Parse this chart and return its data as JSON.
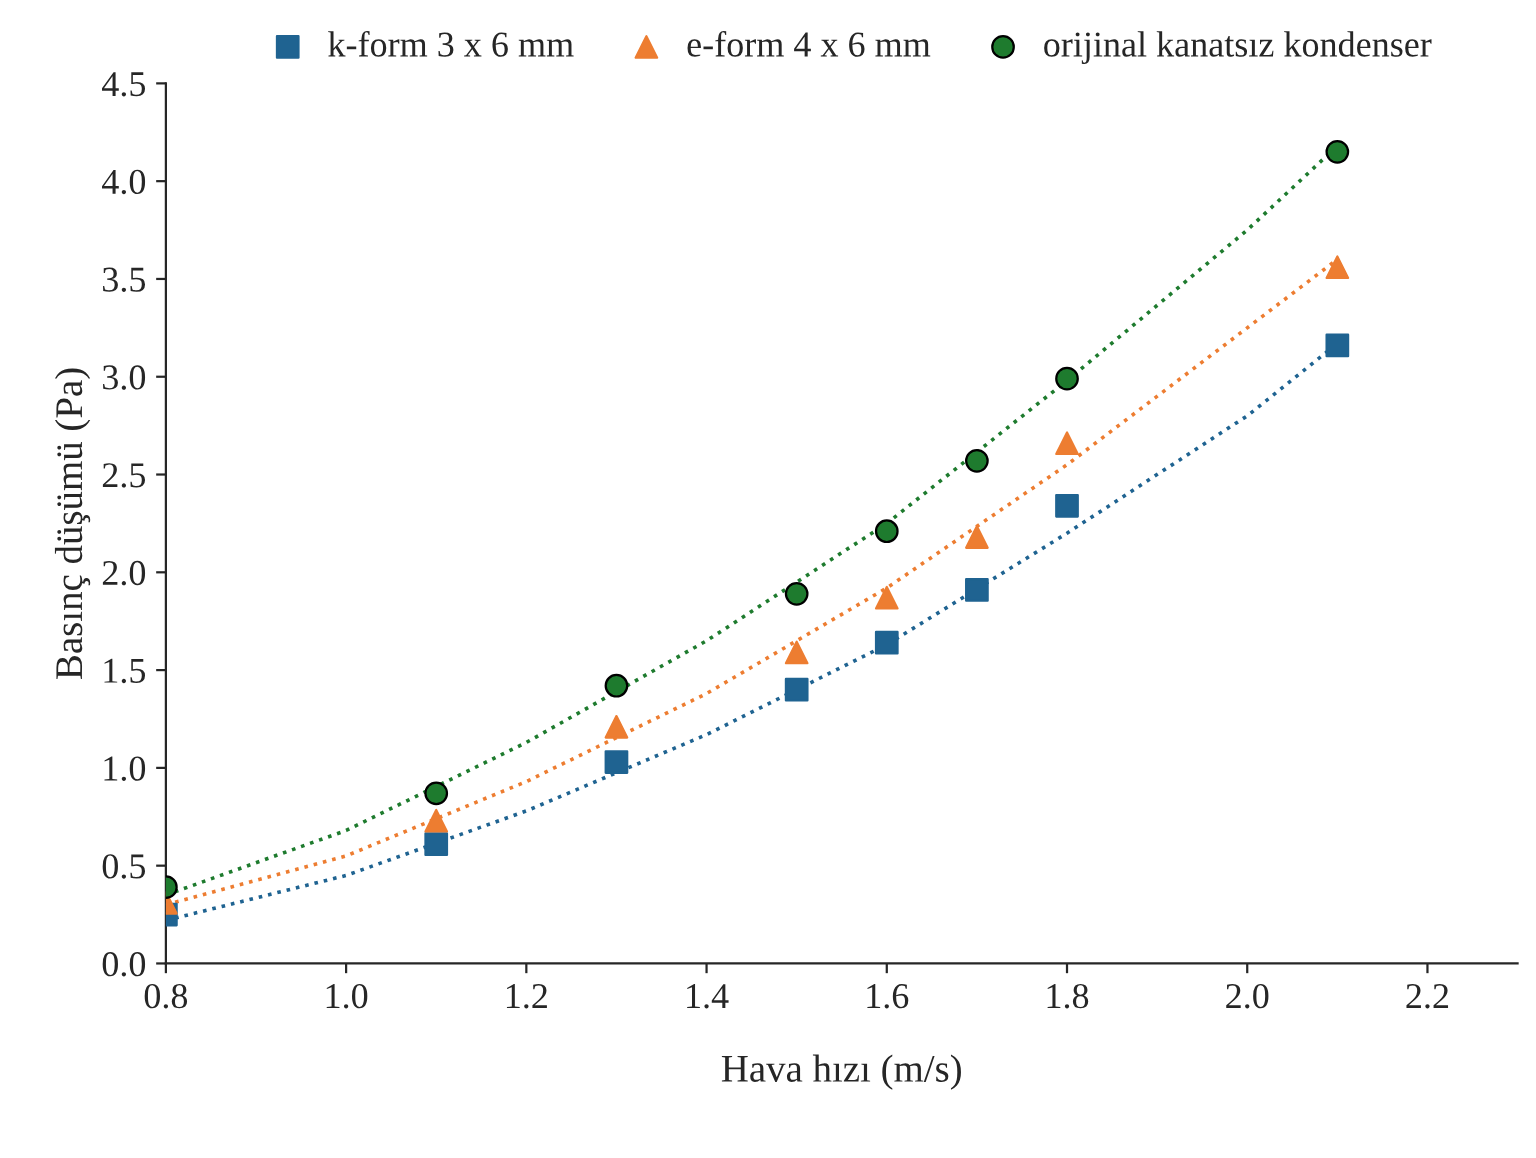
{
  "chart_data": {
    "type": "scatter",
    "xlabel": "Hava hızı (m/s)",
    "ylabel": "Basınç düşümü (Pa)",
    "x": [
      0.8,
      1.1,
      1.3,
      1.5,
      1.6,
      1.7,
      1.8,
      2.1
    ],
    "series": [
      {
        "name": "k-form 3 x 6 mm",
        "color": "#1f6391",
        "marker": "square",
        "values": [
          0.25,
          0.61,
          1.03,
          1.4,
          1.64,
          1.91,
          2.34,
          3.16
        ]
      },
      {
        "name": "e-form 4 x 6 mm",
        "color": "#ed7d31",
        "marker": "triangle",
        "values": [
          0.31,
          0.73,
          1.21,
          1.59,
          1.87,
          2.18,
          2.66,
          3.56
        ]
      },
      {
        "name": "orijinal kanatsız kondenser",
        "color": "#1e7b2e",
        "marker": "circle",
        "values": [
          0.39,
          0.87,
          1.42,
          1.89,
          2.21,
          2.57,
          2.99,
          4.15
        ]
      },
      {
        "type": "line",
        "color": "#1f6391",
        "line_style": "dotted",
        "marker": "none",
        "x": [
          0.8,
          1.0,
          1.2,
          1.4,
          1.6,
          1.8,
          2.0,
          2.1
        ],
        "values": [
          0.22,
          0.45,
          0.78,
          1.17,
          1.63,
          2.2,
          2.8,
          3.17
        ]
      },
      {
        "type": "line",
        "color": "#ed7d31",
        "line_style": "dotted",
        "marker": "none",
        "x": [
          0.8,
          1.0,
          1.2,
          1.4,
          1.6,
          1.8,
          2.0,
          2.1
        ],
        "values": [
          0.3,
          0.55,
          0.93,
          1.38,
          1.92,
          2.55,
          3.25,
          3.6
        ]
      },
      {
        "type": "line",
        "color": "#1e7b2e",
        "line_style": "dotted",
        "marker": "none",
        "x": [
          0.8,
          1.0,
          1.2,
          1.4,
          1.6,
          1.8,
          2.0,
          2.1
        ],
        "values": [
          0.35,
          0.68,
          1.13,
          1.65,
          2.25,
          2.98,
          3.75,
          4.18
        ]
      }
    ],
    "xlim": [
      0.8,
      2.3
    ],
    "xticks": [
      0.8,
      {
        "value": 1,
        "label": "1.0"
      },
      1.2,
      1.4,
      1.6,
      1.8,
      {
        "value": 2,
        "label": "2.0"
      },
      2.2
    ],
    "ylim": [
      0,
      4.5
    ],
    "yticks": [
      {
        "value": 0,
        "label": "0.0"
      },
      0.5,
      {
        "value": 1,
        "label": "1.0"
      },
      1.5,
      {
        "value": 2,
        "label": "2.0"
      },
      2.5,
      {
        "value": 3,
        "label": "3.0"
      },
      3.5,
      {
        "value": 4,
        "label": "4.0"
      },
      4.5
    ],
    "legend": "top",
    "grid": false
  }
}
